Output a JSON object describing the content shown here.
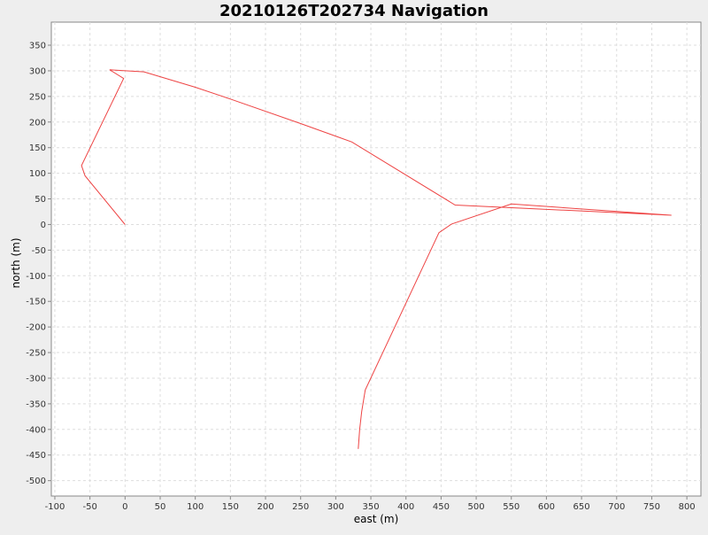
{
  "chart_data": {
    "type": "line",
    "title": "20210126T202734 Navigation",
    "xlabel": "east (m)",
    "ylabel": "north (m)",
    "xlim": [
      -105,
      820
    ],
    "ylim": [
      -530,
      395
    ],
    "xticks": [
      -100,
      -50,
      0,
      50,
      100,
      150,
      200,
      250,
      300,
      350,
      400,
      450,
      500,
      550,
      600,
      650,
      700,
      750,
      800
    ],
    "yticks": [
      350,
      300,
      250,
      200,
      150,
      100,
      50,
      0,
      -50,
      -100,
      -150,
      -200,
      -250,
      -300,
      -350,
      -400,
      -450,
      -500
    ],
    "grid": true,
    "legend": "none",
    "series": [
      {
        "color": "#ee4444",
        "points": [
          [
            0,
            0
          ],
          [
            -57,
            95
          ],
          [
            -62,
            115
          ],
          [
            -2,
            285
          ],
          [
            -22,
            302
          ],
          [
            27,
            298
          ],
          [
            100,
            268
          ],
          [
            150,
            245
          ],
          [
            250,
            197
          ],
          [
            323,
            161
          ],
          [
            470,
            38
          ],
          [
            778,
            18
          ],
          [
            550,
            40
          ],
          [
            465,
            1
          ],
          [
            447,
            -16
          ],
          [
            342,
            -323
          ],
          [
            337,
            -365
          ],
          [
            334,
            -400
          ],
          [
            332,
            -438
          ]
        ]
      }
    ]
  }
}
